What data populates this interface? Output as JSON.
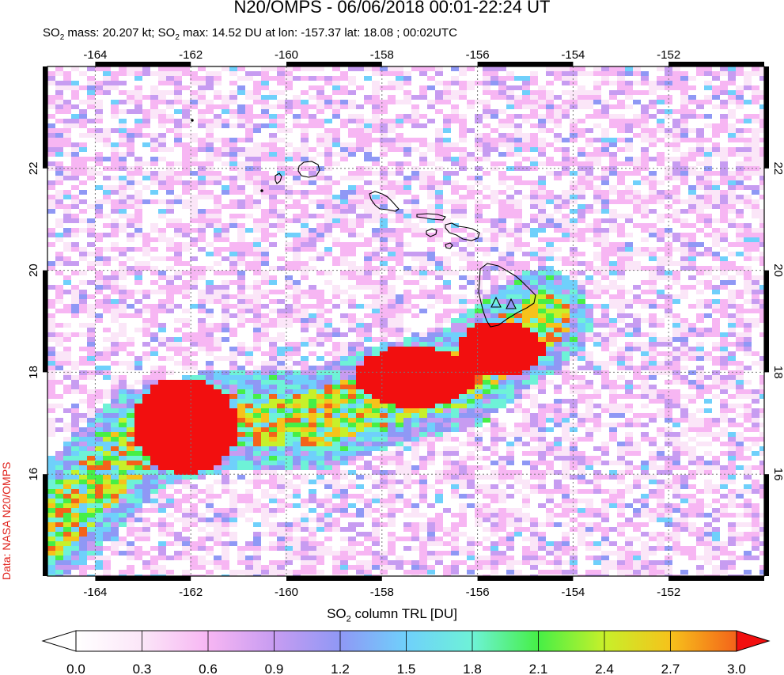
{
  "header": {
    "title": "N20/OMPS - 06/06/2018 00:01-22:24 UT",
    "subtitle_prefix": "SO",
    "subtitle_mass": " mass: 20.207 kt; SO",
    "subtitle_max": " max: 14.52 DU at lon: -157.37 lat: 18.08 ; 00:02UTC",
    "sub_2": "2"
  },
  "credit": "Data: NASA N20/OMPS",
  "colorbar": {
    "label_prefix": "SO",
    "label_sub": "2",
    "label_suffix": " column TRL [DU]",
    "ticks": [
      "0.0",
      "0.3",
      "0.6",
      "0.9",
      "1.2",
      "1.5",
      "1.8",
      "2.1",
      "2.4",
      "2.7",
      "3.0"
    ],
    "colors": [
      "#ffffff",
      "#fbe6f8",
      "#f7b6f3",
      "#c79cf1",
      "#8f98f5",
      "#6fd0fb",
      "#6ef2d7",
      "#46ef46",
      "#c7f02a",
      "#f6c21b",
      "#f4631a",
      "#f20f0f"
    ]
  },
  "map": {
    "lon_ticks": [
      "-164",
      "-162",
      "-160",
      "-158",
      "-156",
      "-154",
      "-152"
    ],
    "lat_ticks": [
      "16",
      "18",
      "20",
      "22"
    ],
    "lon_range": [
      -165,
      -150
    ],
    "lat_range": [
      14,
      24
    ],
    "volcano_markers": [
      [
        -155.6,
        19.45
      ],
      [
        -155.3,
        19.4
      ]
    ]
  }
}
